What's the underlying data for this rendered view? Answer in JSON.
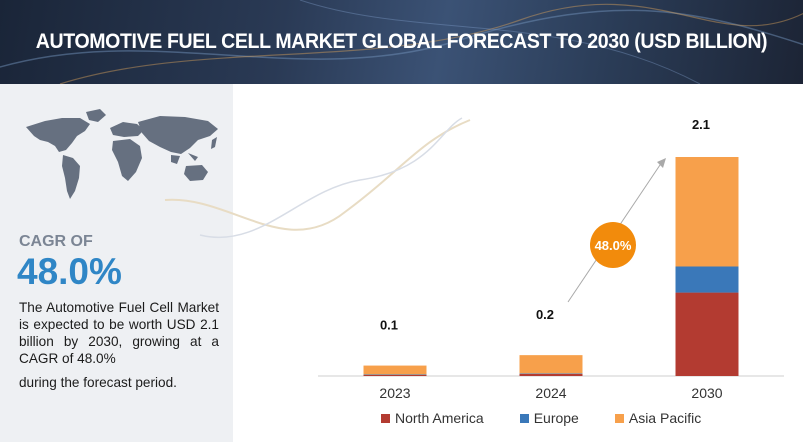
{
  "title": "AUTOMOTIVE FUEL CELL MARKET GLOBAL FORECAST TO 2030 (USD BILLION)",
  "cagr": {
    "label": "CAGR OF",
    "value": "48.0%",
    "bubble": "48.0%",
    "description": "The Automotive Fuel Cell Market is expected to be worth USD 2.1 billion by 2030, growing at a CAGR of 48.0%",
    "description_end": "during the forecast period."
  },
  "colors": {
    "north_america": "#b33b31",
    "europe": "#3a78b9",
    "asia_pacific": "#f7a04b",
    "accent": "#f28b0c"
  },
  "chart_data": {
    "type": "bar",
    "stacked": true,
    "title": "Automotive Fuel Cell Market Global Forecast to 2030 (USD Billion)",
    "categories": [
      "2023",
      "2024",
      "2030"
    ],
    "totals": [
      0.1,
      0.2,
      2.1
    ],
    "total_labels": [
      "0.1",
      "0.2",
      "2.1"
    ],
    "series": [
      {
        "name": "North America",
        "values": [
          0.01,
          0.02,
          0.8
        ]
      },
      {
        "name": "Europe",
        "values": [
          0.005,
          0.005,
          0.25
        ]
      },
      {
        "name": "Asia Pacific",
        "values": [
          0.085,
          0.175,
          1.05
        ]
      }
    ],
    "ylim": [
      0,
      2.1
    ],
    "grid": false,
    "legend_position": "bottom",
    "annotation": "48.0%"
  }
}
